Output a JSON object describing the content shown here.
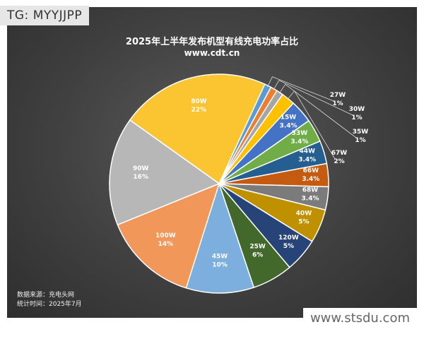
{
  "watermark_top": "TG: MYYJJPP",
  "watermark_bottom": "www.stsdu.com",
  "source_line": "数据来源：充电头网",
  "time_line": "统计时间：2025年7月",
  "chart_data": {
    "type": "pie",
    "title": "2025年上半年发布机型有线充电功率占比",
    "subtitle": "www.cdt.cn",
    "slices": [
      {
        "label": "80W",
        "pct_label": "22%",
        "value": 22,
        "color": "#fbc531"
      },
      {
        "label": "27W",
        "pct_label": "1%",
        "value": 1,
        "color": "#5b9bd5"
      },
      {
        "label": "30W",
        "pct_label": "1%",
        "value": 1,
        "color": "#ed7d31"
      },
      {
        "label": "35W",
        "pct_label": "1%",
        "value": 1,
        "color": "#a5a5a5"
      },
      {
        "label": "67W",
        "pct_label": "2%",
        "value": 2,
        "color": "#ffc000"
      },
      {
        "label": "15W",
        "pct_label": "3.4%",
        "value": 3.4,
        "color": "#4472c4"
      },
      {
        "label": "33W",
        "pct_label": "3.4%",
        "value": 3.4,
        "color": "#70ad47"
      },
      {
        "label": "44W",
        "pct_label": "3.4%",
        "value": 3.4,
        "color": "#255e91"
      },
      {
        "label": "66W",
        "pct_label": "3.4%",
        "value": 3.4,
        "color": "#c55a11"
      },
      {
        "label": "68W",
        "pct_label": "3.4%",
        "value": 3.4,
        "color": "#7b7b7b"
      },
      {
        "label": "40W",
        "pct_label": "5%",
        "value": 5,
        "color": "#bf9000"
      },
      {
        "label": "120W",
        "pct_label": "5%",
        "value": 5,
        "color": "#264478"
      },
      {
        "label": "25W",
        "pct_label": "6%",
        "value": 6,
        "color": "#43682b"
      },
      {
        "label": "45W",
        "pct_label": "10%",
        "value": 10,
        "color": "#7cafdd"
      },
      {
        "label": "100W",
        "pct_label": "14%",
        "value": 14,
        "color": "#f1975a"
      },
      {
        "label": "90W",
        "pct_label": "16%",
        "value": 16,
        "color": "#b7b7b7"
      }
    ]
  }
}
